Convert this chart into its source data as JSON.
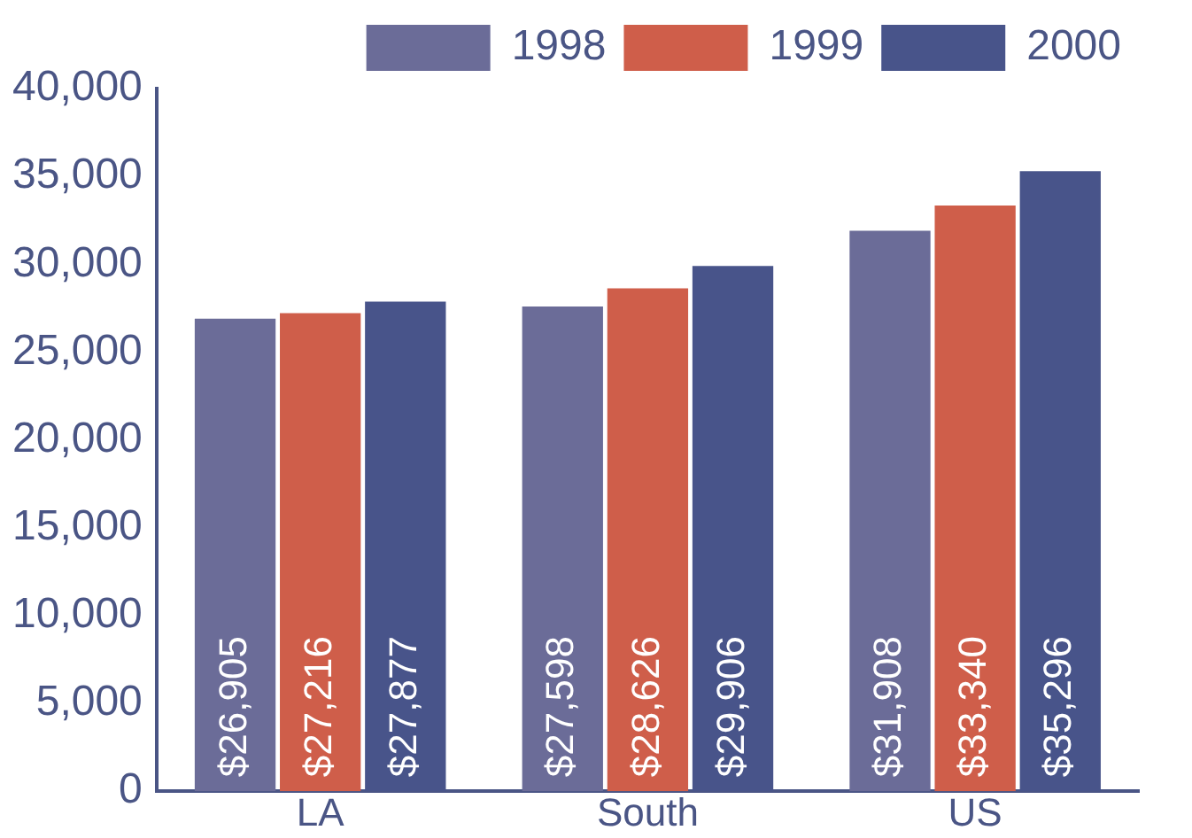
{
  "chart_data": {
    "type": "bar",
    "categories": [
      "LA",
      "South",
      "US"
    ],
    "series": [
      {
        "name": "1998",
        "color": "#6b6c98",
        "values": [
          26905,
          27598,
          31908
        ],
        "value_labels": [
          "$26,905",
          "$27,598",
          "$31,908"
        ]
      },
      {
        "name": "1999",
        "color": "#cf5e4a",
        "values": [
          27216,
          28626,
          33340
        ],
        "value_labels": [
          "$27,216",
          "$28,626",
          "$33,340"
        ]
      },
      {
        "name": "2000",
        "color": "#48548a",
        "values": [
          27877,
          29906,
          35296
        ],
        "value_labels": [
          "$27,877",
          "$29,906",
          "$35,296"
        ]
      }
    ],
    "ylim": [
      0,
      40000
    ],
    "yticks": [
      {
        "value": 0,
        "label": "0"
      },
      {
        "value": 5000,
        "label": "5,000"
      },
      {
        "value": 10000,
        "label": "10,000"
      },
      {
        "value": 15000,
        "label": "15,000"
      },
      {
        "value": 20000,
        "label": "20,000"
      },
      {
        "value": 25000,
        "label": "25,000"
      },
      {
        "value": 30000,
        "label": "30,000"
      },
      {
        "value": 35000,
        "label": "35,000"
      },
      {
        "value": 40000,
        "label": "40,000"
      }
    ],
    "grid": false,
    "legend": "top"
  }
}
